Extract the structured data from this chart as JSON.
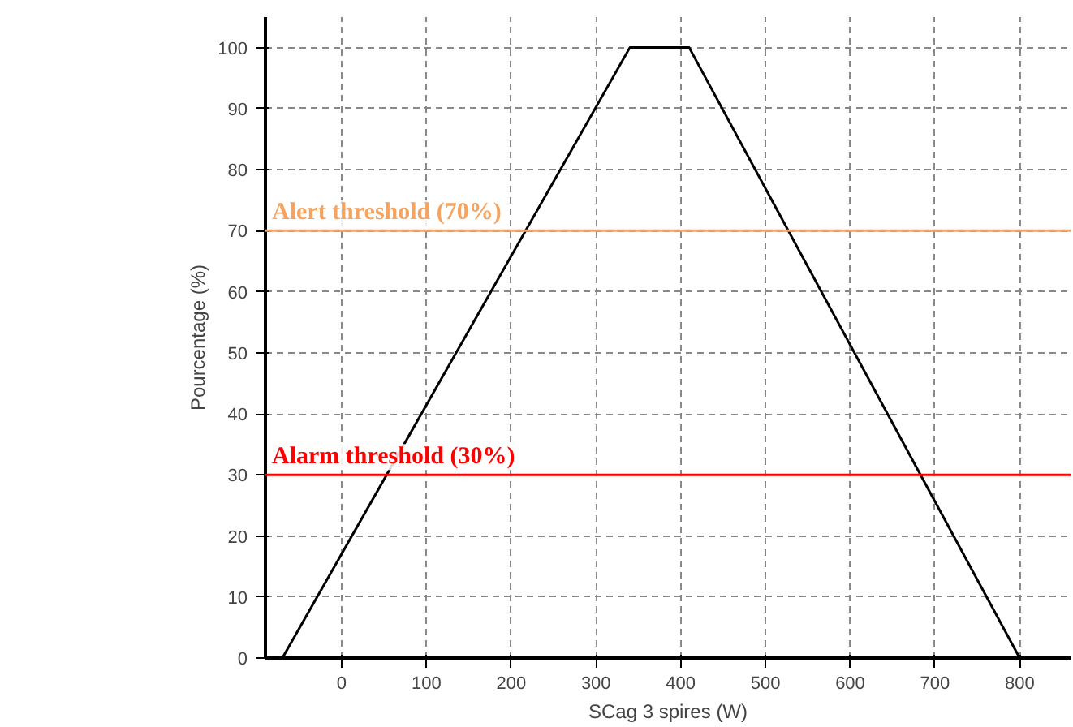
{
  "chart_data": {
    "type": "line",
    "xlabel": "SCag 3 spires (W)",
    "ylabel": "Pourcentage (%)",
    "x": [
      -70,
      340,
      410,
      800
    ],
    "series": [
      {
        "color": "#000000",
        "values": [
          0,
          100,
          100,
          0
        ]
      }
    ],
    "xlim": [
      -90,
      860
    ],
    "ylim": [
      0,
      105
    ],
    "xticks": [
      0,
      100,
      200,
      300,
      400,
      500,
      600,
      700,
      800
    ],
    "yticks": [
      0,
      10,
      20,
      30,
      40,
      50,
      60,
      70,
      80,
      90,
      100
    ],
    "grid": true,
    "marker": "none",
    "line_style": "solid",
    "ref_lines": [
      {
        "axis": "y",
        "value": 70,
        "label": "Alert threshold (70%)",
        "color": "#f4a460"
      },
      {
        "axis": "y",
        "value": 30,
        "label": "Alarm threshold (30%)",
        "color": "#ff0000"
      }
    ]
  }
}
